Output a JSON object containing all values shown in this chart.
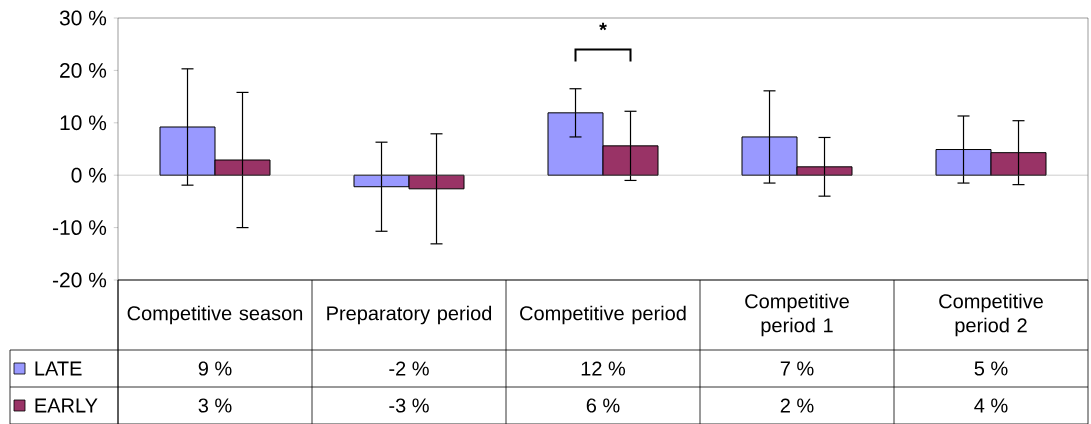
{
  "chart_data": {
    "type": "bar",
    "categories": [
      "Competitive season",
      "Preparatory period",
      "Competitive period",
      "Competitive period 1",
      "Competitive period 2"
    ],
    "series": [
      {
        "name": "LATE",
        "color": "#9999ff",
        "values": [
          9.2,
          -2.2,
          11.9,
          7.3,
          4.9
        ],
        "errors": [
          11.1,
          8.5,
          4.6,
          8.8,
          6.4
        ],
        "value_labels": [
          "9 %",
          "-2 %",
          "12 %",
          "7 %",
          "5 %"
        ]
      },
      {
        "name": "EARLY",
        "color": "#993366",
        "values": [
          2.9,
          -2.6,
          5.6,
          1.6,
          4.3
        ],
        "errors": [
          12.9,
          10.5,
          6.6,
          5.6,
          6.1
        ],
        "value_labels": [
          "3 %",
          "-3 %",
          "6 %",
          "2 %",
          "4 %"
        ]
      }
    ],
    "ylim": [
      -20,
      30
    ],
    "yticks": [
      {
        "value": -20,
        "label": "-20 %"
      },
      {
        "value": -10,
        "label": "-10 %"
      },
      {
        "value": 0,
        "label": "0 %"
      },
      {
        "value": 10,
        "label": "10 %"
      },
      {
        "value": 20,
        "label": "20 %"
      },
      {
        "value": 30,
        "label": "30 %"
      }
    ],
    "annotations": [
      "*"
    ],
    "ref_lines": [
      {
        "axis": "y",
        "value": 0,
        "color": "#808080"
      }
    ],
    "legend": "bottom left",
    "grid": false
  }
}
